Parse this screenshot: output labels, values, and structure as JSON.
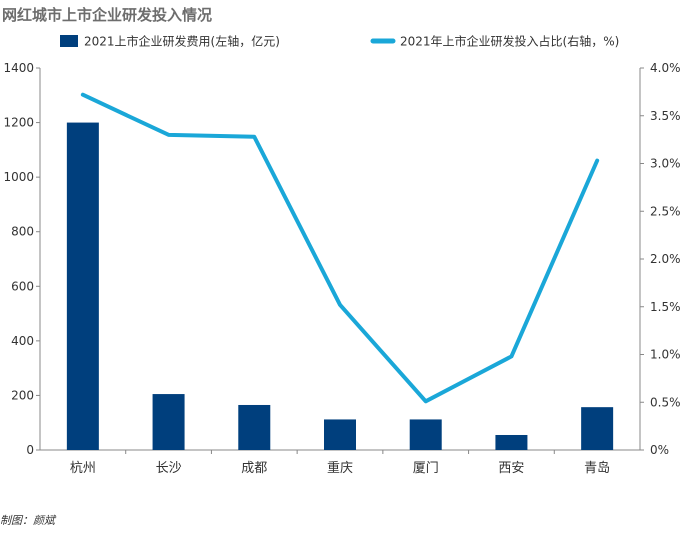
{
  "chart_data": {
    "type": "bar+line",
    "title": "网红城市上市企业研发投入情况",
    "categories": [
      "杭州",
      "长沙",
      "成都",
      "重庆",
      "厦门",
      "西安",
      "青岛"
    ],
    "series": [
      {
        "name": "2021上市企业研发费用(左轴，亿元)",
        "type": "bar",
        "axis": "left",
        "values": [
          1200,
          205,
          165,
          112,
          112,
          55,
          157
        ],
        "color": "#003f7d"
      },
      {
        "name": "2021年上市企业研发投入占比(右轴，%)",
        "type": "line",
        "axis": "right",
        "values": [
          3.72,
          3.3,
          3.28,
          1.52,
          0.51,
          0.98,
          3.03
        ],
        "color": "#1aa7d8"
      }
    ],
    "y_left": {
      "range": [
        0,
        1400
      ],
      "ticks": [
        "0",
        "200",
        "400",
        "600",
        "800",
        "1000",
        "1200",
        "1400"
      ]
    },
    "y_right": {
      "range": [
        0,
        4.0
      ],
      "ticks": [
        "0%",
        "0.5%",
        "1.0%",
        "1.5%",
        "2.0%",
        "2.5%",
        "3.0%",
        "3.5%",
        "4.0%"
      ]
    },
    "legend_position": "top",
    "grid": false
  },
  "credit": "制图：颜斌"
}
